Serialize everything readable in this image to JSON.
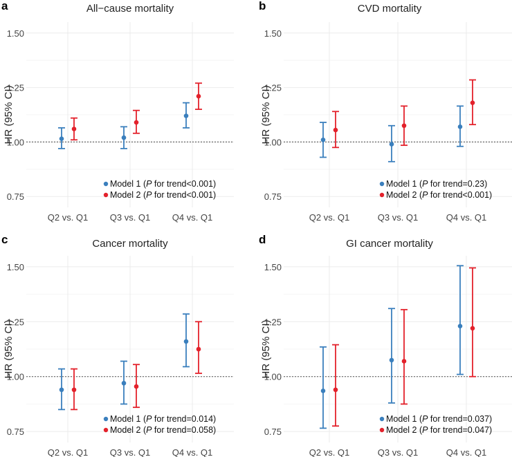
{
  "figure": {
    "panels": [
      {
        "letter": "a",
        "title": "All−cause mortality",
        "ylabel": "HR (95% CI)",
        "legend": [
          {
            "label": "Model 1 (",
            "p": "P",
            "rest": " for trend<0.001)"
          },
          {
            "label": "Model 2 (",
            "p": "P",
            "rest": " for trend<0.001)"
          }
        ]
      },
      {
        "letter": "b",
        "title": "CVD mortality",
        "ylabel": "HR (95% CI)",
        "legend": [
          {
            "label": "Model 1 (",
            "p": "P",
            "rest": " for trend=0.23)"
          },
          {
            "label": "Model 2 (",
            "p": "P",
            "rest": " for trend<0.001)"
          }
        ]
      },
      {
        "letter": "c",
        "title": "Cancer mortality",
        "ylabel": "HR (95% CI)",
        "legend": [
          {
            "label": "Model 1 (",
            "p": "P",
            "rest": " for trend=0.014)"
          },
          {
            "label": "Model 2 (",
            "p": "P",
            "rest": " for trend=0.058)"
          }
        ]
      },
      {
        "letter": "d",
        "title": "GI cancer mortality",
        "ylabel": "HR (95% CI)",
        "legend": [
          {
            "label": "Model 1 (",
            "p": "P",
            "rest": " for trend=0.037)"
          },
          {
            "label": "Model 2 (",
            "p": "P",
            "rest": " for trend=0.047)"
          }
        ]
      }
    ]
  },
  "colors": {
    "model1": "#3a7fbd",
    "model2": "#e3212b",
    "grid": "#ebebeb",
    "reference": "#666666"
  },
  "chart_data": [
    {
      "type": "scatter",
      "title": "All−cause mortality",
      "ylabel": "HR (95% CI)",
      "categories": [
        "Q2 vs. Q1",
        "Q3 vs. Q1",
        "Q4 vs. Q1"
      ],
      "ylim": [
        0.7,
        1.55
      ],
      "yticks": [
        0.75,
        1.0,
        1.25,
        1.5
      ],
      "ytick_labels": [
        "0.75",
        "1.00",
        "1.25",
        "1.50"
      ],
      "reference_line": 1.0,
      "series": [
        {
          "name": "Model 1",
          "hr": [
            1.015,
            1.02,
            1.12
          ],
          "lower": [
            0.97,
            0.97,
            1.065
          ],
          "upper": [
            1.065,
            1.07,
            1.18
          ]
        },
        {
          "name": "Model 2",
          "hr": [
            1.06,
            1.09,
            1.21
          ],
          "lower": [
            1.01,
            1.04,
            1.15
          ],
          "upper": [
            1.11,
            1.145,
            1.27
          ]
        }
      ]
    },
    {
      "type": "scatter",
      "title": "CVD mortality",
      "ylabel": "HR (95% CI)",
      "categories": [
        "Q2 vs. Q1",
        "Q3 vs. Q1",
        "Q4 vs. Q1"
      ],
      "ylim": [
        0.7,
        1.55
      ],
      "yticks": [
        0.75,
        1.0,
        1.25,
        1.5
      ],
      "ytick_labels": [
        "0.75",
        "1.00",
        "1.25",
        "1.50"
      ],
      "reference_line": 1.0,
      "series": [
        {
          "name": "Model 1",
          "hr": [
            1.01,
            0.99,
            1.07
          ],
          "lower": [
            0.93,
            0.91,
            0.98
          ],
          "upper": [
            1.09,
            1.075,
            1.165
          ]
        },
        {
          "name": "Model 2",
          "hr": [
            1.055,
            1.075,
            1.18
          ],
          "lower": [
            0.975,
            0.985,
            1.08
          ],
          "upper": [
            1.14,
            1.165,
            1.285
          ]
        }
      ]
    },
    {
      "type": "scatter",
      "title": "Cancer mortality",
      "ylabel": "HR (95% CI)",
      "categories": [
        "Q2 vs. Q1",
        "Q3 vs. Q1",
        "Q4 vs. Q1"
      ],
      "ylim": [
        0.7,
        1.55
      ],
      "yticks": [
        0.75,
        1.0,
        1.25,
        1.5
      ],
      "ytick_labels": [
        "0.75",
        "1.00",
        "1.25",
        "1.50"
      ],
      "reference_line": 1.0,
      "series": [
        {
          "name": "Model 1",
          "hr": [
            0.94,
            0.97,
            1.16
          ],
          "lower": [
            0.85,
            0.875,
            1.045
          ],
          "upper": [
            1.035,
            1.07,
            1.285
          ]
        },
        {
          "name": "Model 2",
          "hr": [
            0.94,
            0.955,
            1.125
          ],
          "lower": [
            0.85,
            0.86,
            1.015
          ],
          "upper": [
            1.035,
            1.055,
            1.25
          ]
        }
      ]
    },
    {
      "type": "scatter",
      "title": "GI cancer mortality",
      "ylabel": "HR (95% CI)",
      "categories": [
        "Q2 vs. Q1",
        "Q3 vs. Q1",
        "Q4 vs. Q1"
      ],
      "ylim": [
        0.7,
        1.55
      ],
      "yticks": [
        0.75,
        1.0,
        1.25,
        1.5
      ],
      "ytick_labels": [
        "0.75",
        "1.00",
        "1.25",
        "1.50"
      ],
      "reference_line": 1.0,
      "series": [
        {
          "name": "Model 1",
          "hr": [
            0.935,
            1.075,
            1.23
          ],
          "lower": [
            0.765,
            0.88,
            1.01
          ],
          "upper": [
            1.135,
            1.31,
            1.505
          ]
        },
        {
          "name": "Model 2",
          "hr": [
            0.94,
            1.07,
            1.22
          ],
          "lower": [
            0.775,
            0.875,
            1.0
          ],
          "upper": [
            1.145,
            1.305,
            1.495
          ]
        }
      ]
    }
  ]
}
